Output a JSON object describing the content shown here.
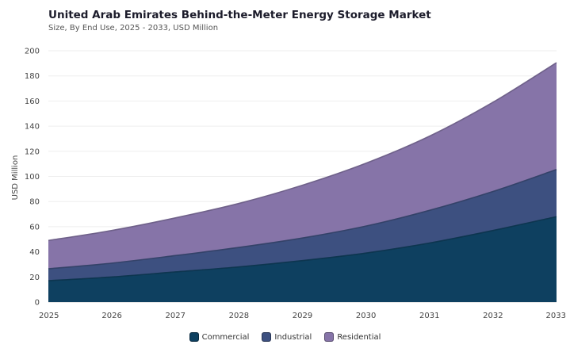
{
  "chart_data": {
    "type": "area",
    "stacked": true,
    "title": "United Arab Emirates Behind-the-Meter Energy Storage Market",
    "subtitle": "Size, By End Use, 2025 - 2033, USD Million",
    "xlabel": "",
    "ylabel": "USD Million",
    "x": [
      "2025",
      "2026",
      "2027",
      "2028",
      "2029",
      "2030",
      "2031",
      "2032",
      "2033"
    ],
    "ylim": [
      0,
      200
    ],
    "yticks": [
      "0",
      "20",
      "40",
      "60",
      "80",
      "100",
      "120",
      "140",
      "160",
      "180",
      "200"
    ],
    "grid": true,
    "legend_position": "bottom",
    "series": [
      {
        "name": "Commercial",
        "color": "#0e4060",
        "values": [
          17,
          20,
          24,
          28,
          33,
          39,
          47,
          57,
          68
        ]
      },
      {
        "name": "Industrial",
        "color": "#3d5080",
        "values": [
          9.5,
          11,
          13,
          15.5,
          18,
          21.5,
          26,
          31,
          37.5
        ]
      },
      {
        "name": "Residential",
        "color": "#8674a8",
        "values": [
          22.5,
          26,
          30,
          35,
          42,
          50,
          59,
          71,
          85
        ]
      }
    ]
  }
}
